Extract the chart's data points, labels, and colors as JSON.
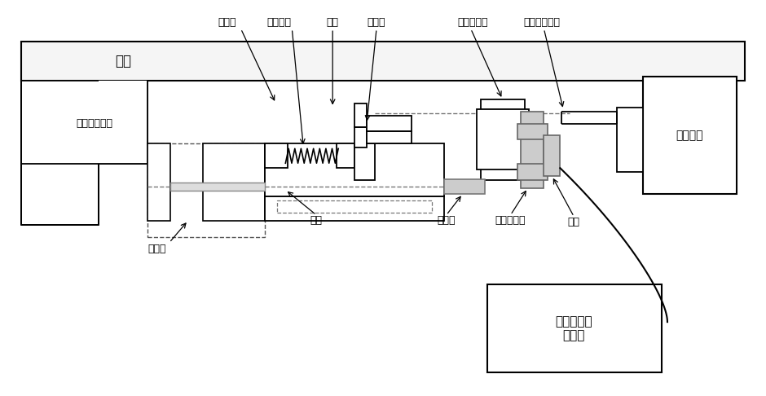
{
  "bg_color": "#ffffff",
  "line_color": "#000000",
  "labels": {
    "diancifu": "电磁阀",
    "diancifu_gudingzuo": "电磁阀固定座",
    "pingtai": "平台",
    "tanzhen": "探针",
    "chuanganqi": "传感器",
    "chuanganqi_zhijia": "传感器支架",
    "luomu": "螺母",
    "cejiliang": "测量分析仪\n显示屏",
    "buyidianji": "步进电机",
    "yajinkuai": "压紧块",
    "yajin_tanhuang": "压紧弹簧",
    "daogui": "导轨",
    "lianjiegang": "联接杆",
    "daogui_gudingzuo": "导轨固定架",
    "buyidianji_sigang": "步进电机丝杆"
  }
}
